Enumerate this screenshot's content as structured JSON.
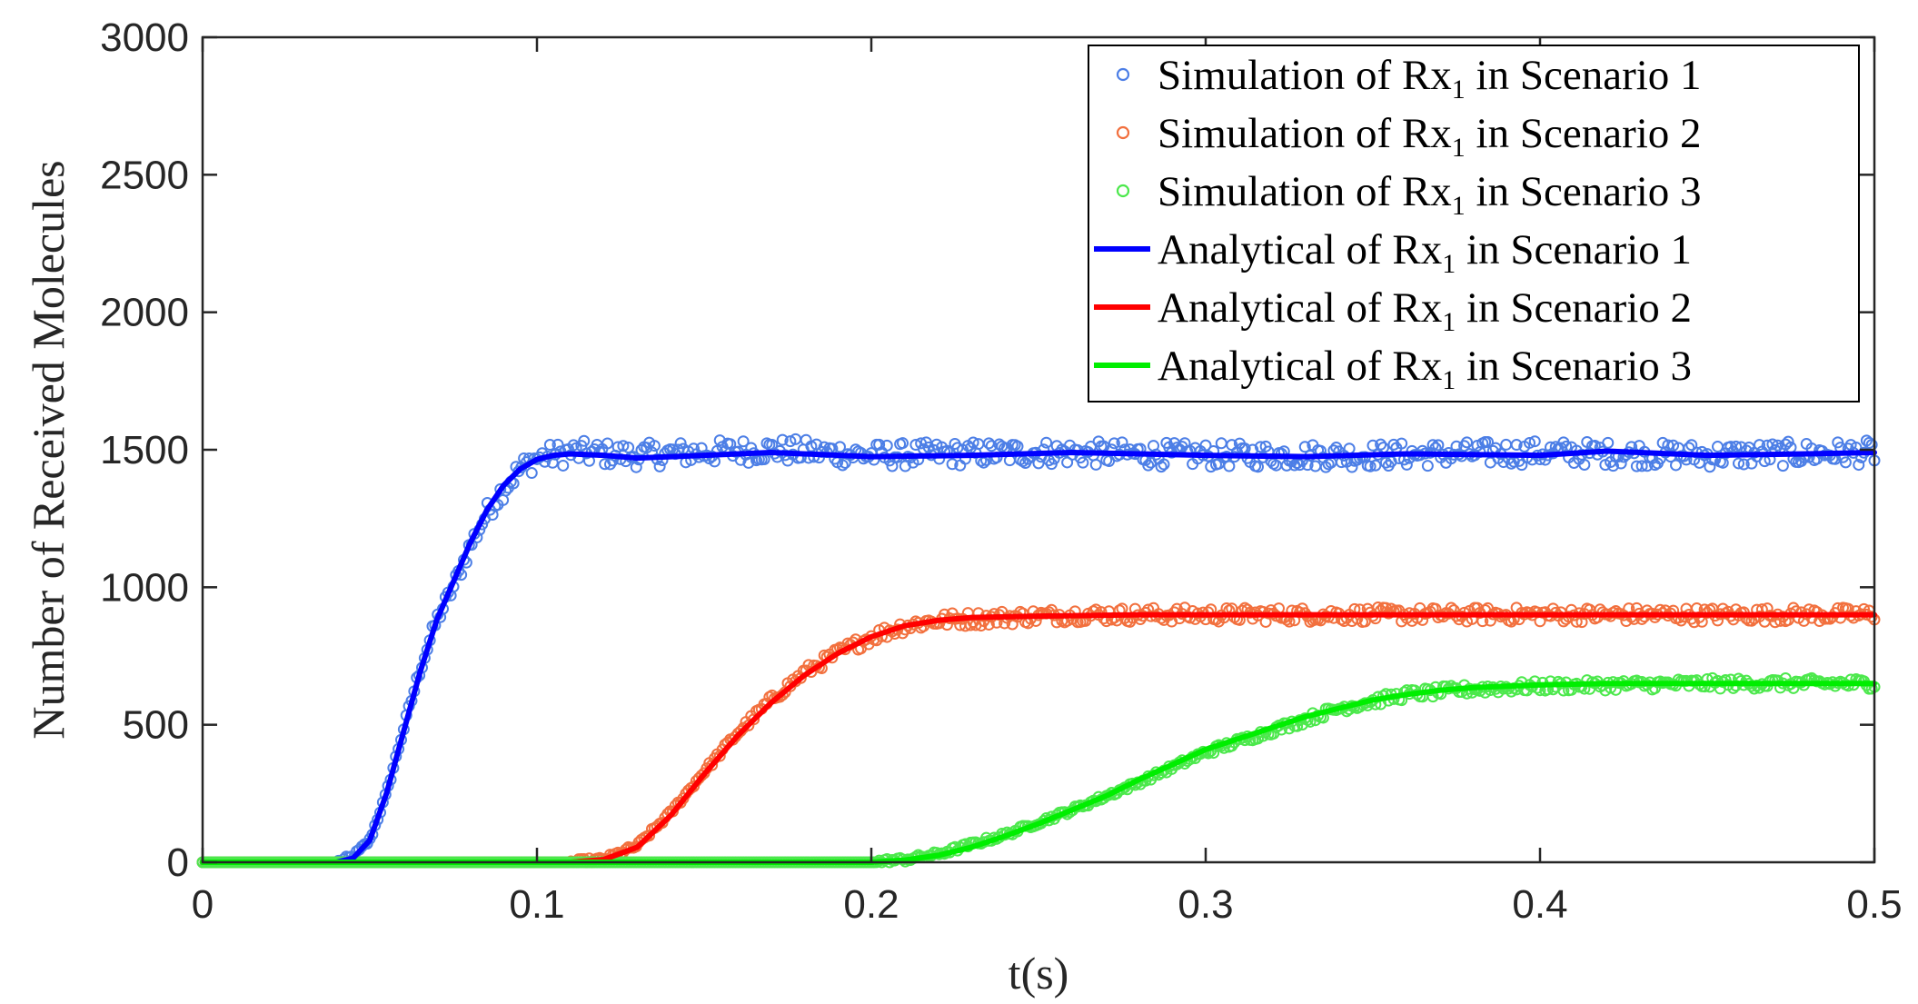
{
  "chart_data": {
    "type": "line",
    "title": "",
    "xlabel": "t(s)",
    "ylabel": "Number of Received Molecules",
    "xlim": [
      0,
      0.5
    ],
    "ylim": [
      0,
      3000
    ],
    "xticks": [
      0,
      0.1,
      0.2,
      0.3,
      0.4,
      0.5
    ],
    "xtick_labels": [
      "0",
      "0.1",
      "0.2",
      "0.3",
      "0.4",
      "0.5"
    ],
    "yticks": [
      0,
      500,
      1000,
      1500,
      2000,
      2500,
      3000
    ],
    "ytick_labels": [
      "0",
      "500",
      "1000",
      "1500",
      "2000",
      "2500",
      "3000"
    ],
    "grid": false,
    "legend_position": "top-right",
    "colors": {
      "sim1": "#4d7fe6",
      "sim2": "#f2703e",
      "sim3": "#4ce84c",
      "ana1": "#0000ff",
      "ana2": "#ff0000",
      "ana3": "#00ee00",
      "axis": "#262626"
    },
    "series": [
      {
        "name": "Simulation of Rx1 in Scenario 1",
        "legend_base": "Simulation of Rx",
        "legend_sub": "1",
        "legend_rest": " in Scenario 1",
        "kind": "scatter",
        "color_key": "sim1",
        "x": [
          0,
          0.04,
          0.045,
          0.05,
          0.055,
          0.06,
          0.065,
          0.07,
          0.075,
          0.08,
          0.085,
          0.09,
          0.095,
          0.1,
          0.11,
          0.13,
          0.15,
          0.17,
          0.2,
          0.25,
          0.3,
          0.35,
          0.4,
          0.45,
          0.5
        ],
        "y": [
          0,
          0,
          20,
          80,
          250,
          480,
          700,
          880,
          1000,
          1150,
          1270,
          1360,
          1430,
          1470,
          1490,
          1480,
          1490,
          1500,
          1480,
          1490,
          1480,
          1480,
          1490,
          1480,
          1490
        ]
      },
      {
        "name": "Simulation of Rx1 in Scenario 2",
        "legend_base": "Simulation of Rx",
        "legend_sub": "1",
        "legend_rest": " in Scenario 2",
        "kind": "scatter",
        "color_key": "sim2",
        "x": [
          0,
          0.11,
          0.12,
          0.13,
          0.14,
          0.15,
          0.16,
          0.17,
          0.18,
          0.19,
          0.2,
          0.21,
          0.22,
          0.24,
          0.26,
          0.3,
          0.35,
          0.4,
          0.45,
          0.5
        ],
        "y": [
          0,
          0,
          10,
          60,
          180,
          330,
          470,
          590,
          690,
          760,
          820,
          860,
          880,
          890,
          900,
          900,
          900,
          900,
          900,
          900
        ]
      },
      {
        "name": "Simulation of Rx1 in Scenario 3",
        "legend_base": "Simulation of Rx",
        "legend_sub": "1",
        "legend_rest": " in Scenario 3",
        "kind": "scatter",
        "color_key": "sim3",
        "x": [
          0,
          0.2,
          0.21,
          0.22,
          0.24,
          0.26,
          0.28,
          0.3,
          0.32,
          0.34,
          0.36,
          0.38,
          0.4,
          0.45,
          0.5
        ],
        "y": [
          0,
          0,
          10,
          30,
          100,
          190,
          290,
          400,
          480,
          560,
          610,
          630,
          640,
          650,
          650
        ]
      },
      {
        "name": "Analytical of Rx1 in Scenario 1",
        "legend_base": "Analytical of Rx",
        "legend_sub": "1",
        "legend_rest": " in Scenario 1",
        "kind": "line",
        "color_key": "ana1",
        "x": [
          0,
          0.04,
          0.045,
          0.05,
          0.055,
          0.06,
          0.065,
          0.07,
          0.075,
          0.08,
          0.085,
          0.09,
          0.095,
          0.1,
          0.105,
          0.11,
          0.12,
          0.13,
          0.14,
          0.15,
          0.17,
          0.2,
          0.23,
          0.26,
          0.3,
          0.33,
          0.36,
          0.4,
          0.42,
          0.45,
          0.48,
          0.5
        ],
        "y": [
          0,
          0,
          15,
          80,
          250,
          470,
          690,
          880,
          1020,
          1160,
          1280,
          1370,
          1430,
          1465,
          1480,
          1485,
          1480,
          1470,
          1475,
          1480,
          1490,
          1475,
          1480,
          1490,
          1480,
          1475,
          1485,
          1480,
          1495,
          1480,
          1485,
          1490
        ]
      },
      {
        "name": "Analytical of Rx1 in Scenario 2",
        "legend_base": "Analytical of Rx",
        "legend_sub": "1",
        "legend_rest": " in Scenario 2",
        "kind": "line",
        "color_key": "ana2",
        "x": [
          0,
          0.11,
          0.12,
          0.13,
          0.14,
          0.15,
          0.16,
          0.17,
          0.18,
          0.19,
          0.2,
          0.21,
          0.22,
          0.23,
          0.25,
          0.28,
          0.32,
          0.36,
          0.4,
          0.44,
          0.48,
          0.5
        ],
        "y": [
          0,
          0,
          10,
          55,
          170,
          320,
          460,
          580,
          680,
          760,
          820,
          860,
          880,
          890,
          895,
          900,
          900,
          900,
          900,
          900,
          900,
          900
        ]
      },
      {
        "name": "Analytical of Rx1 in Scenario 3",
        "legend_base": "Analytical of Rx",
        "legend_sub": "1",
        "legend_rest": " in Scenario 3",
        "kind": "line",
        "color_key": "ana3",
        "x": [
          0,
          0.2,
          0.21,
          0.22,
          0.23,
          0.24,
          0.25,
          0.26,
          0.27,
          0.28,
          0.29,
          0.3,
          0.31,
          0.32,
          0.33,
          0.34,
          0.35,
          0.36,
          0.37,
          0.38,
          0.39,
          0.4,
          0.42,
          0.45,
          0.48,
          0.5
        ],
        "y": [
          0,
          0,
          8,
          25,
          55,
          95,
          140,
          190,
          240,
          300,
          355,
          410,
          450,
          490,
          530,
          560,
          590,
          610,
          625,
          635,
          640,
          645,
          650,
          650,
          650,
          650
        ]
      }
    ]
  }
}
